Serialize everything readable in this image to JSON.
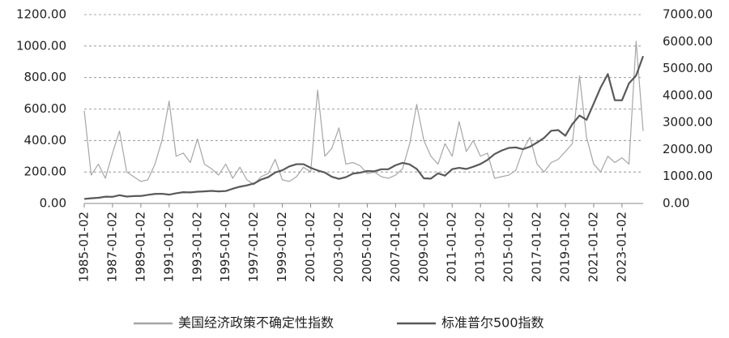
{
  "chart_data": {
    "type": "line",
    "x": [
      "1985-01-02",
      "1985-07-01",
      "1986-01-02",
      "1986-07-01",
      "1987-01-02",
      "1987-07-01",
      "1988-01-02",
      "1988-07-01",
      "1989-01-02",
      "1989-07-01",
      "1990-01-02",
      "1990-07-01",
      "1991-01-02",
      "1991-07-01",
      "1992-01-02",
      "1992-07-01",
      "1993-01-02",
      "1993-07-01",
      "1994-01-02",
      "1994-07-01",
      "1995-01-02",
      "1995-07-01",
      "1996-01-02",
      "1996-07-01",
      "1997-01-02",
      "1997-07-01",
      "1998-01-02",
      "1998-07-01",
      "1999-01-02",
      "1999-07-01",
      "2000-01-02",
      "2000-07-01",
      "2001-01-02",
      "2001-07-01",
      "2002-01-02",
      "2002-07-01",
      "2003-01-02",
      "2003-07-01",
      "2004-01-02",
      "2004-07-01",
      "2005-01-02",
      "2005-07-01",
      "2006-01-02",
      "2006-07-01",
      "2007-01-02",
      "2007-07-01",
      "2008-01-02",
      "2008-07-01",
      "2009-01-02",
      "2009-07-01",
      "2010-01-02",
      "2010-07-01",
      "2011-01-02",
      "2011-07-01",
      "2012-01-02",
      "2012-07-01",
      "2013-01-02",
      "2013-07-01",
      "2014-01-02",
      "2014-07-01",
      "2015-01-02",
      "2015-07-01",
      "2016-01-02",
      "2016-07-01",
      "2017-01-02",
      "2017-07-01",
      "2018-01-02",
      "2018-07-01",
      "2019-01-02",
      "2019-07-01",
      "2020-01-02",
      "2020-07-01",
      "2021-01-02",
      "2021-07-01",
      "2022-01-02",
      "2022-07-01",
      "2023-01-02",
      "2023-07-01",
      "2024-01-02",
      "2024-07-01"
    ],
    "series": [
      {
        "name": "美国经济政策不确定性指数",
        "color": "#a6a6a6",
        "values": [
          590,
          180,
          250,
          160,
          320,
          460,
          200,
          170,
          140,
          150,
          250,
          400,
          650,
          300,
          320,
          260,
          410,
          250,
          220,
          180,
          250,
          160,
          230,
          150,
          120,
          170,
          190,
          280,
          150,
          140,
          170,
          230,
          200,
          720,
          300,
          350,
          480,
          250,
          260,
          240,
          190,
          200,
          170,
          160,
          180,
          220,
          380,
          630,
          400,
          300,
          250,
          380,
          300,
          520,
          330,
          400,
          300,
          320,
          160,
          170,
          180,
          210,
          340,
          420,
          250,
          200,
          260,
          280,
          330,
          380,
          810,
          420,
          250,
          200,
          300,
          260,
          290,
          250,
          1030,
          460
        ]
      },
      {
        "name": "标准普尔500指数",
        "color": "#595959",
        "axis": "y2",
        "values": [
          167,
          192,
          211,
          251,
          246,
          305,
          255,
          273,
          277,
          318,
          353,
          358,
          326,
          377,
          417,
          409,
          435,
          448,
          466,
          446,
          460,
          545,
          620,
          671,
          740,
          885,
          975,
          1148,
          1229,
          1373,
          1455,
          1455,
          1320,
          1224,
          1148,
          989,
          909,
          975,
          1108,
          1140,
          1202,
          1191,
          1268,
          1270,
          1416,
          1503,
          1447,
          1280,
          931,
          919,
          1115,
          1030,
          1271,
          1320,
          1277,
          1362,
          1462,
          1614,
          1831,
          1960,
          2058,
          2077,
          2012,
          2103,
          2258,
          2429,
          2695,
          2718,
          2510,
          2942,
          3258,
          3100,
          3700,
          4300,
          4796,
          3825,
          3824,
          4450,
          4742,
          5460
        ]
      }
    ],
    "xlim": [
      "1985-01-02",
      "2024-07-01"
    ],
    "xticks": [
      "1985-01-02",
      "1987-01-02",
      "1989-01-02",
      "1991-01-02",
      "1993-01-02",
      "1995-01-02",
      "1997-01-02",
      "1999-01-02",
      "2001-01-02",
      "2003-01-02",
      "2005-01-02",
      "2007-01-02",
      "2009-01-02",
      "2011-01-02",
      "2013-01-02",
      "2015-01-02",
      "2017-01-02",
      "2019-01-02",
      "2021-01-02",
      "2023-01-02"
    ],
    "ylim": [
      0,
      1200
    ],
    "yticks": [
      {
        "value": 0,
        "label": "0.00"
      },
      {
        "value": 200,
        "label": "200.00"
      },
      {
        "value": 400,
        "label": "400.00"
      },
      {
        "value": 600,
        "label": "600.00"
      },
      {
        "value": 800,
        "label": "800.00"
      },
      {
        "value": 1000,
        "label": "1000.00"
      },
      {
        "value": 1200,
        "label": "1200.00"
      }
    ],
    "y2lim": [
      0,
      7000
    ],
    "y2ticks": [
      {
        "value": 0,
        "label": "0.00"
      },
      {
        "value": 1000,
        "label": "1000.00"
      },
      {
        "value": 2000,
        "label": "2000.00"
      },
      {
        "value": 3000,
        "label": "3000.00"
      },
      {
        "value": 4000,
        "label": "4000.00"
      },
      {
        "value": 5000,
        "label": "5000.00"
      },
      {
        "value": 6000,
        "label": "6000.00"
      },
      {
        "value": 7000,
        "label": "7000.00"
      }
    ],
    "grid": true,
    "legend": "bottom"
  }
}
